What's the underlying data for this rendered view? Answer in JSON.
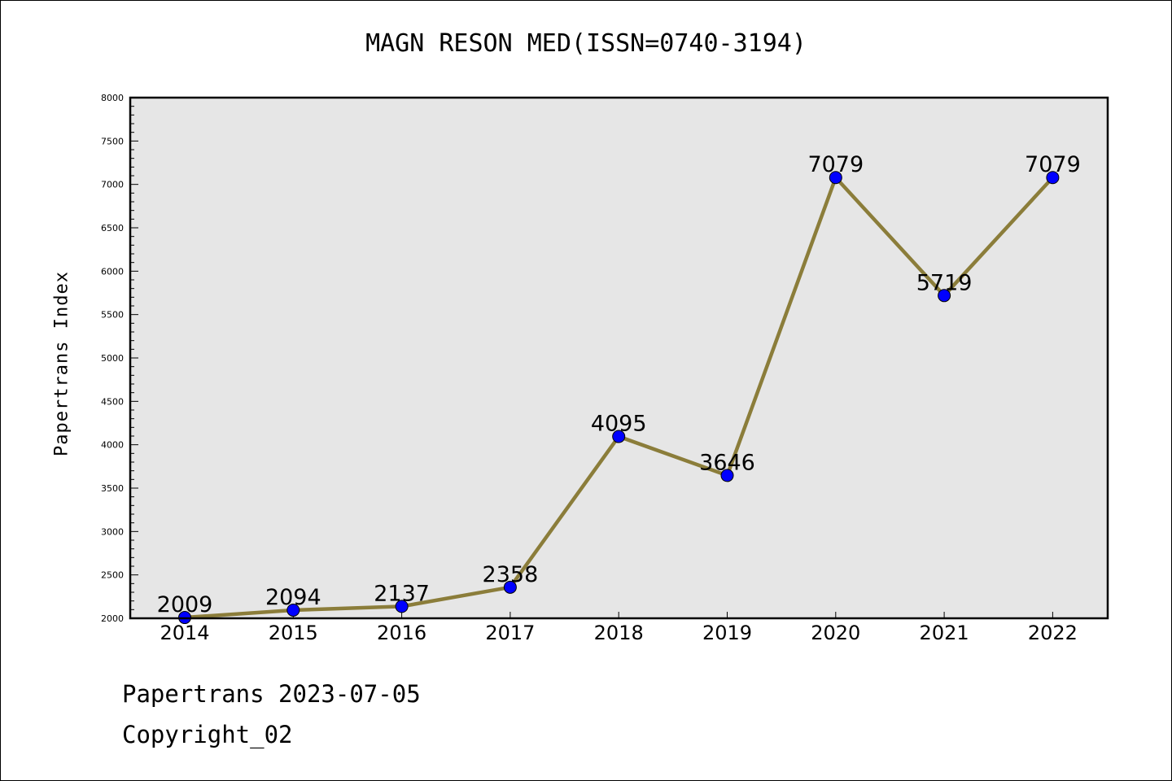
{
  "chart_data": {
    "type": "line",
    "title": "MAGN RESON MED(ISSN=0740-3194)",
    "xlabel": "",
    "ylabel": "Papertrans Index",
    "categories": [
      "2014",
      "2015",
      "2016",
      "2017",
      "2018",
      "2019",
      "2020",
      "2021",
      "2022"
    ],
    "series": [
      {
        "values": [
          2009,
          2094,
          2137,
          2358,
          4095,
          3646,
          7079,
          5719,
          7079
        ]
      }
    ],
    "ylim": [
      2000,
      8000
    ],
    "yticks": [
      2000,
      2500,
      3000,
      3500,
      4000,
      4500,
      5000,
      5500,
      6000,
      6500,
      7000,
      7500,
      8000
    ],
    "grid": false,
    "data_labels": true
  },
  "footer": {
    "date_line": "Papertrans 2023-07-05",
    "copyright_line": "Copyright_02"
  },
  "colors": {
    "plot_background": "#e6e6e6",
    "line": "#8b7d3a",
    "marker": "#0000ff"
  }
}
